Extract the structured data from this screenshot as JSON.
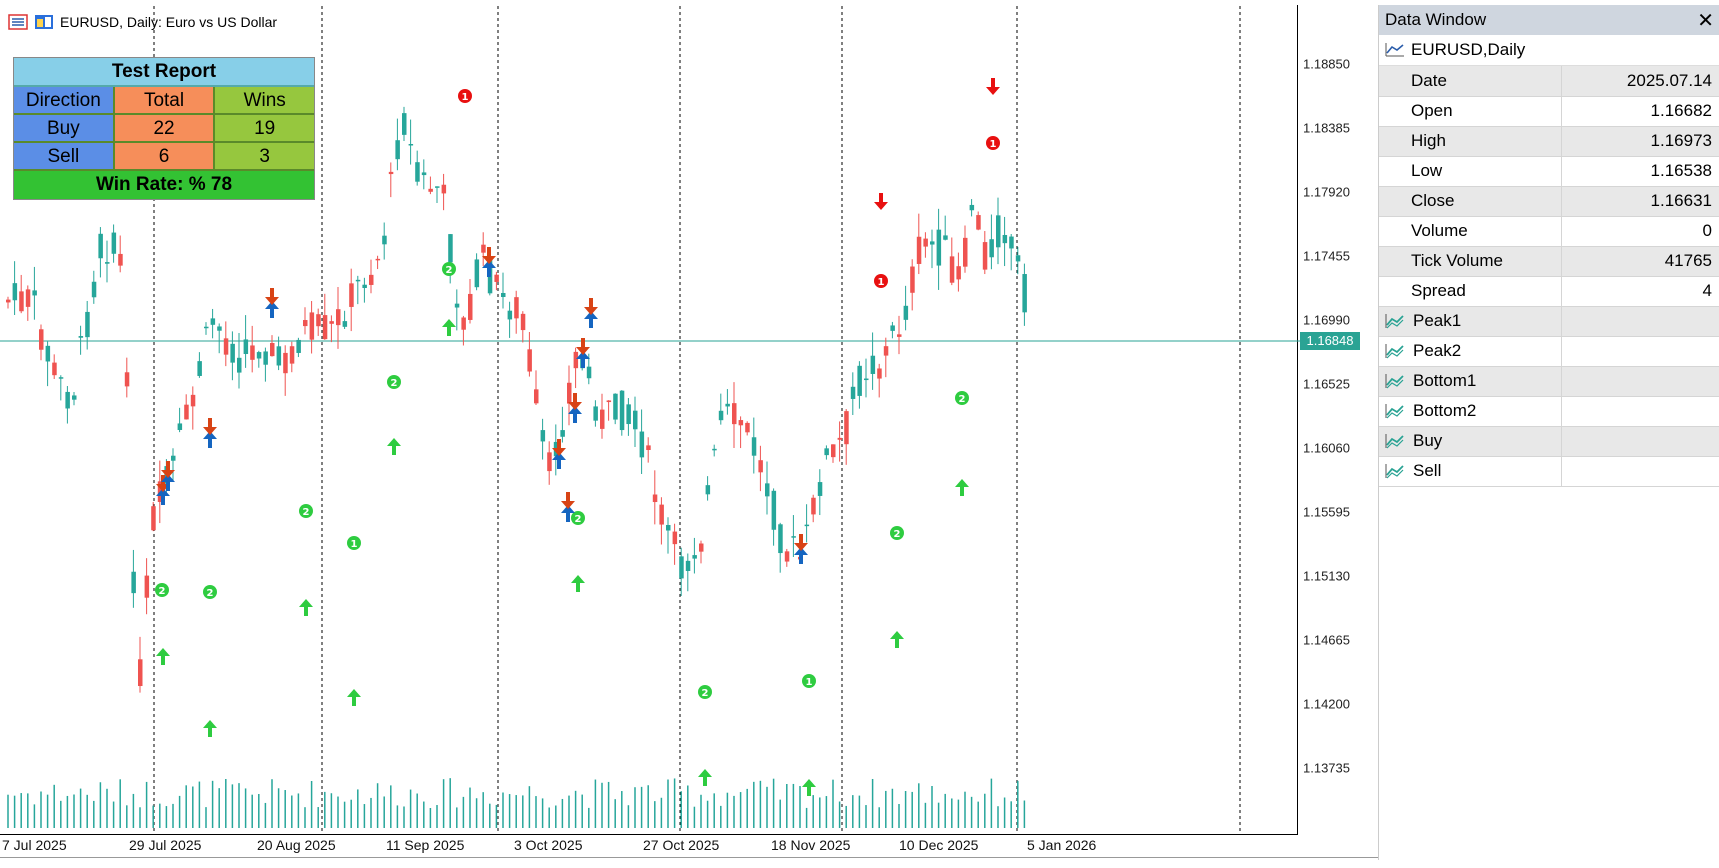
{
  "chart": {
    "title": "EURUSD, Daily:  Euro vs US Dollar",
    "current_price": "1.16848",
    "price_labels": [
      "1.18850",
      "1.18385",
      "1.17920",
      "1.17455",
      "1.16990",
      "1.16525",
      "1.16060",
      "1.15595",
      "1.15130",
      "1.14665",
      "1.14200",
      "1.13735"
    ],
    "date_labels": [
      "7 Jul 2025",
      "29 Jul 2025",
      "20 Aug 2025",
      "11 Sep 2025",
      "3 Oct 2025",
      "27 Oct 2025",
      "18 Nov 2025",
      "10 Dec 2025",
      "5 Jan 2026"
    ],
    "colors": {
      "bull": "#26a69a",
      "bear": "#ef5350",
      "signal_green": "#2ecc40",
      "signal_red": "#e81010",
      "buy_arrow": "#1565c0",
      "sell_arrow": "#d84315"
    }
  },
  "report": {
    "title": "Test Report",
    "headers": [
      "Direction",
      "Total",
      "Wins"
    ],
    "rows": [
      [
        "Buy",
        "22",
        "19"
      ],
      [
        "Sell",
        "6",
        "3"
      ]
    ],
    "footer": "Win Rate: %  78"
  },
  "data_window": {
    "title": "Data Window",
    "close": "✕",
    "symbol": "EURUSD,Daily",
    "fields": [
      {
        "name": "Date",
        "value": "2025.07.14"
      },
      {
        "name": "Open",
        "value": "1.16682"
      },
      {
        "name": "High",
        "value": "1.16973"
      },
      {
        "name": "Low",
        "value": "1.16538"
      },
      {
        "name": "Close",
        "value": "1.16631"
      },
      {
        "name": "Volume",
        "value": "0"
      },
      {
        "name": "Tick Volume",
        "value": "41765"
      },
      {
        "name": "Spread",
        "value": "4"
      }
    ],
    "indicators": [
      "Peak1",
      "Peak2",
      "Bottom1",
      "Bottom2",
      "Buy",
      "Sell"
    ]
  }
}
